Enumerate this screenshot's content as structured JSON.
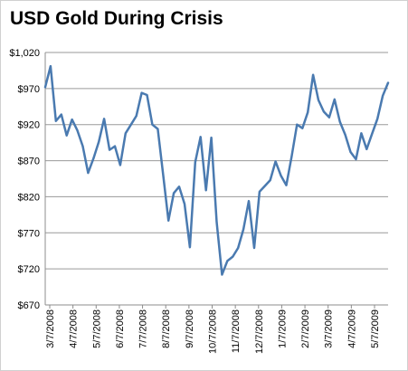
{
  "chart_data": {
    "type": "line",
    "title": "USD Gold During Crisis",
    "xlabel": "",
    "ylabel": "",
    "ylim": [
      670,
      1020
    ],
    "y_ticks": [
      670,
      720,
      770,
      820,
      870,
      920,
      970,
      1020
    ],
    "y_tick_labels": [
      "$670",
      "$720",
      "$770",
      "$820",
      "$870",
      "$920",
      "$970",
      "$1,020"
    ],
    "x_tick_labels": [
      "3/7/2008",
      "4/7/2008",
      "5/7/2008",
      "6/7/2008",
      "7/7/2008",
      "8/7/2008",
      "9/7/2008",
      "10/7/2008",
      "11/7/2008",
      "12/7/2008",
      "1/7/2009",
      "2/7/2009",
      "3/7/2009",
      "4/7/2009",
      "5/7/2009"
    ],
    "grid": true,
    "legend": "none",
    "series": [
      {
        "color": "#4a7ab0",
        "values": [
          972,
          1001,
          925,
          934,
          905,
          927,
          912,
          890,
          853,
          873,
          896,
          928,
          885,
          890,
          864,
          908,
          920,
          932,
          964,
          961,
          920,
          914,
          851,
          787,
          825,
          834,
          810,
          750,
          868,
          903,
          829,
          902,
          785,
          712,
          731,
          737,
          749,
          775,
          814,
          749,
          827,
          835,
          843,
          869,
          849,
          836,
          876,
          920,
          915,
          937,
          989,
          954,
          938,
          930,
          955,
          924,
          906,
          882,
          872,
          908,
          886,
          907,
          928,
          960,
          978
        ]
      }
    ]
  }
}
